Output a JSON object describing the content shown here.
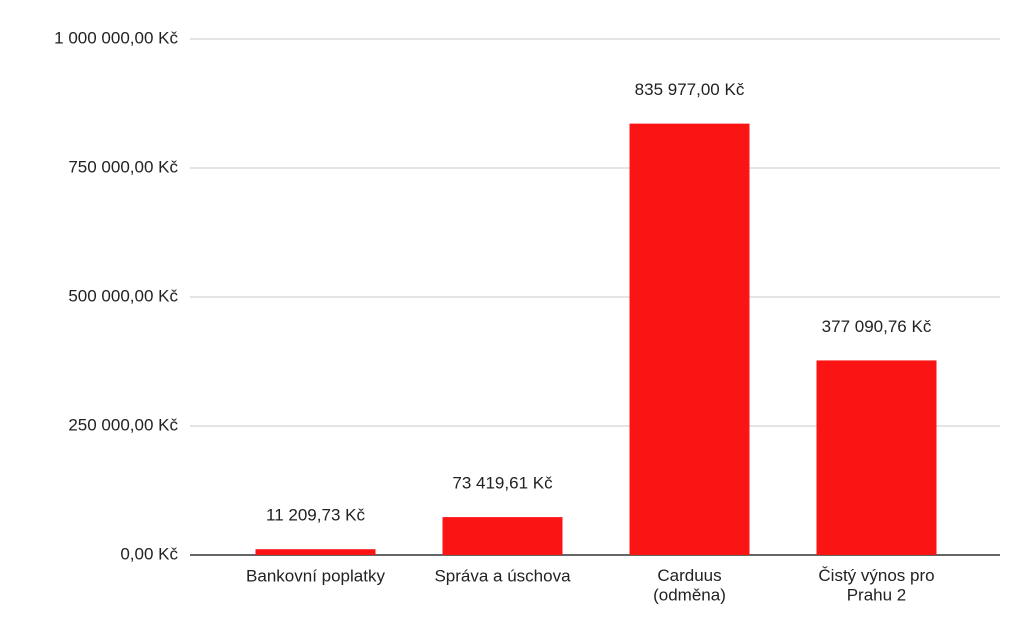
{
  "chart_data": {
    "type": "bar",
    "categories": [
      "Bankovní poplatky",
      "Správa a úschova",
      "Carduus\n(odměna)",
      "Čistý výnos pro\nPrahu 2"
    ],
    "values": [
      11209.73,
      73419.61,
      835977,
      377090.76
    ],
    "value_labels": [
      "11 209,73 Kč",
      "73 419,61 Kč",
      "835 977,00 Kč",
      "377 090,76 Kč"
    ],
    "color": "#fa1414",
    "ylim": [
      0,
      1000000
    ],
    "yticks": [
      {
        "value": 0,
        "label": "0,00 Kč"
      },
      {
        "value": 250000,
        "label": "250 000,00 Kč"
      },
      {
        "value": 500000,
        "label": "500 000,00 Kč"
      },
      {
        "value": 750000,
        "label": "750 000,00 Kč"
      },
      {
        "value": 1000000,
        "label": "1 000 000,00 Kč"
      }
    ],
    "grid": true
  }
}
